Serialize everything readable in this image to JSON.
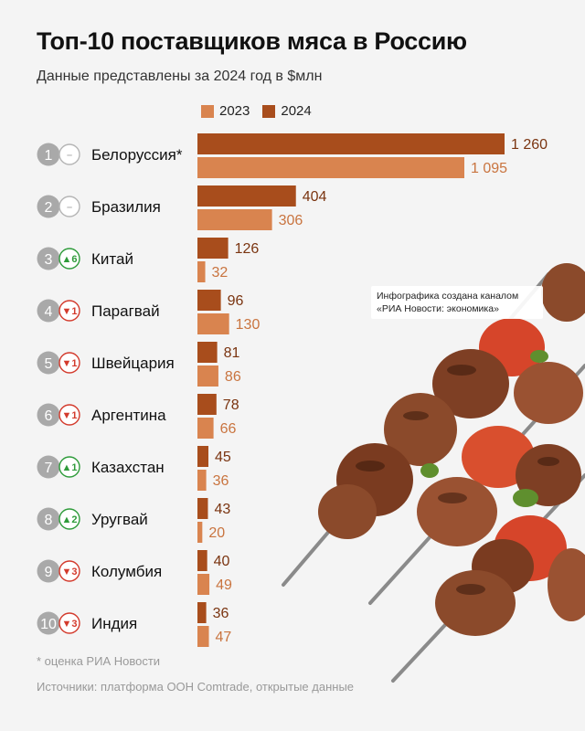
{
  "header": {
    "title": "Топ-10 поставщиков мяса в Россию",
    "subtitle": "Данные представлены за 2024 год в $млн"
  },
  "legend": {
    "items": [
      {
        "label": "2023",
        "color": "#d9844f"
      },
      {
        "label": "2024",
        "color": "#a84d1c"
      }
    ]
  },
  "note": "Инфографика создана каналом «РИА Новости: экономика»",
  "footnote": "* оценка РИА Новости",
  "source": "Источники: платформа ООН Comtrade, открытые данные",
  "colors": {
    "bar_2023": "#d9844f",
    "bar_2024": "#a84d1c",
    "rank_circle": "#a9a9a9",
    "change_up": "#2e9b3a",
    "change_down": "#d33a2c",
    "change_none": "#b5b5b5"
  },
  "chart_data": {
    "type": "bar",
    "orientation": "horizontal",
    "categories": [
      "Белоруссия*",
      "Бразилия",
      "Китай",
      "Парагвай",
      "Швейцария",
      "Аргентина",
      "Казахстан",
      "Уругвай",
      "Колумбия",
      "Индия"
    ],
    "series": [
      {
        "name": "2024",
        "values": [
          1260,
          404,
          126,
          96,
          81,
          78,
          45,
          43,
          40,
          36
        ]
      },
      {
        "name": "2023",
        "values": [
          1095,
          306,
          32,
          130,
          86,
          66,
          36,
          20,
          49,
          47
        ]
      }
    ],
    "value_labels_2024": [
      "1 260",
      "404",
      "126",
      "96",
      "81",
      "78",
      "45",
      "43",
      "40",
      "36"
    ],
    "value_labels_2023": [
      "1 095",
      "306",
      "32",
      "130",
      "86",
      "66",
      "36",
      "20",
      "49",
      "47"
    ],
    "ranks": [
      "1",
      "2",
      "3",
      "4",
      "5",
      "6",
      "7",
      "8",
      "9",
      "10"
    ],
    "rank_changes": [
      {
        "dir": "none",
        "label": "–"
      },
      {
        "dir": "none",
        "label": "–"
      },
      {
        "dir": "up",
        "label": "▲6"
      },
      {
        "dir": "down",
        "label": "▼1"
      },
      {
        "dir": "down",
        "label": "▼1"
      },
      {
        "dir": "down",
        "label": "▼1"
      },
      {
        "dir": "up",
        "label": "▲1"
      },
      {
        "dir": "up",
        "label": "▲2"
      },
      {
        "dir": "down",
        "label": "▼3"
      },
      {
        "dir": "down",
        "label": "▼3"
      }
    ],
    "xlim": [
      0,
      1260
    ],
    "grid": false,
    "legend_position": "top"
  }
}
